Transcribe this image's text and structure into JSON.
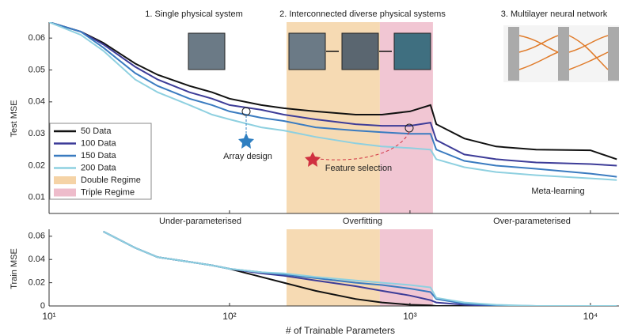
{
  "chart_data": [
    {
      "type": "line",
      "ylabel": "Test MSE",
      "xscale": "log",
      "xlim": [
        10,
        14400
      ],
      "ylim": [
        0.005,
        0.065
      ],
      "xticks": [
        {
          "value": 10,
          "label": "10¹"
        },
        {
          "value": 100,
          "label": "10²"
        },
        {
          "value": 1000,
          "label": "10³"
        },
        {
          "value": 10000,
          "label": "10⁴"
        }
      ],
      "yticks": [
        0.01,
        0.02,
        0.03,
        0.04,
        0.05,
        0.06
      ],
      "regions": [
        {
          "name": "Double Regime",
          "color": "#f5d3a6",
          "range": [
            207,
            681
          ]
        },
        {
          "name": "Triple Regime",
          "color": "#eebccb",
          "range": [
            681,
            1340
          ]
        }
      ],
      "annotations": [
        "1. Single physical system",
        "2. Interconnected diverse physical systems",
        "3. Multilayer neural network",
        "Array design",
        "Feature selection",
        "Meta-learning",
        "Under-parameterised",
        "Overfitting",
        "Over-parameterised"
      ],
      "x": [
        10,
        15,
        20,
        30,
        40,
        60,
        80,
        100,
        150,
        200,
        300,
        500,
        700,
        1000,
        1300,
        1400,
        2000,
        3000,
        5000,
        10000,
        14000
      ],
      "series": [
        {
          "name": "50 Data",
          "color": "#111111",
          "values": [
            0.065,
            0.062,
            0.0585,
            0.052,
            0.0485,
            0.045,
            0.043,
            0.041,
            0.039,
            0.038,
            0.037,
            0.036,
            0.036,
            0.037,
            0.039,
            0.033,
            0.0285,
            0.026,
            0.025,
            0.0248,
            0.022
          ]
        },
        {
          "name": "100 Data",
          "color": "#3d3c98",
          "values": [
            0.065,
            0.062,
            0.058,
            0.051,
            0.047,
            0.043,
            0.041,
            0.039,
            0.0375,
            0.036,
            0.0345,
            0.033,
            0.0325,
            0.0325,
            0.0335,
            0.028,
            0.0235,
            0.022,
            0.021,
            0.0205,
            0.02
          ]
        },
        {
          "name": "150 Data",
          "color": "#3a7bc0",
          "values": [
            0.065,
            0.062,
            0.057,
            0.049,
            0.045,
            0.041,
            0.039,
            0.037,
            0.035,
            0.034,
            0.032,
            0.031,
            0.0305,
            0.03,
            0.03,
            0.025,
            0.0215,
            0.02,
            0.019,
            0.0175,
            0.0165
          ]
        },
        {
          "name": "200 Data",
          "color": "#8ed0e0",
          "values": [
            0.065,
            0.061,
            0.056,
            0.047,
            0.043,
            0.039,
            0.036,
            0.0345,
            0.032,
            0.031,
            0.029,
            0.027,
            0.026,
            0.0255,
            0.025,
            0.022,
            0.0195,
            0.018,
            0.017,
            0.016,
            0.0155
          ]
        }
      ]
    },
    {
      "type": "line",
      "ylabel": "Train MSE",
      "xlabel": "# of Trainable Parameters",
      "xscale": "log",
      "xlim": [
        10,
        14400
      ],
      "ylim": [
        0,
        0.066
      ],
      "xticks": [
        {
          "value": 10,
          "label": "10¹"
        },
        {
          "value": 100,
          "label": "10²"
        },
        {
          "value": 1000,
          "label": "10³"
        },
        {
          "value": 10000,
          "label": "10⁴"
        }
      ],
      "yticks": [
        0,
        0.02,
        0.04,
        0.06
      ],
      "x": [
        10,
        15,
        20,
        30,
        40,
        60,
        80,
        100,
        150,
        200,
        300,
        500,
        700,
        1000,
        1300,
        1400,
        2000,
        3000,
        5000,
        10000,
        14000
      ],
      "series": [
        {
          "name": "50 Data",
          "color": "#111111",
          "values": [
            null,
            null,
            0.064,
            0.05,
            0.042,
            0.038,
            0.035,
            0.032,
            0.025,
            0.02,
            0.013,
            0.006,
            0.003,
            0.001,
            0.0005,
            0,
            0,
            0,
            0,
            0,
            0
          ]
        },
        {
          "name": "100 Data",
          "color": "#3d3c98",
          "values": [
            null,
            null,
            0.064,
            0.05,
            0.042,
            0.038,
            0.035,
            0.032,
            0.028,
            0.026,
            0.022,
            0.017,
            0.013,
            0.009,
            0.005,
            0.003,
            0.001,
            0,
            0,
            0,
            0
          ]
        },
        {
          "name": "150 Data",
          "color": "#3a7bc0",
          "values": [
            null,
            null,
            0.064,
            0.05,
            0.042,
            0.038,
            0.035,
            0.032,
            0.029,
            0.027,
            0.024,
            0.02,
            0.018,
            0.015,
            0.012,
            0.006,
            0.002,
            0.0005,
            0,
            0,
            0
          ]
        },
        {
          "name": "200 Data",
          "color": "#8ed0e0",
          "values": [
            null,
            null,
            0.064,
            0.05,
            0.042,
            0.038,
            0.035,
            0.032,
            0.029,
            0.028,
            0.025,
            0.022,
            0.02,
            0.018,
            0.016,
            0.007,
            0.003,
            0.001,
            0,
            0,
            0
          ]
        }
      ]
    }
  ]
}
